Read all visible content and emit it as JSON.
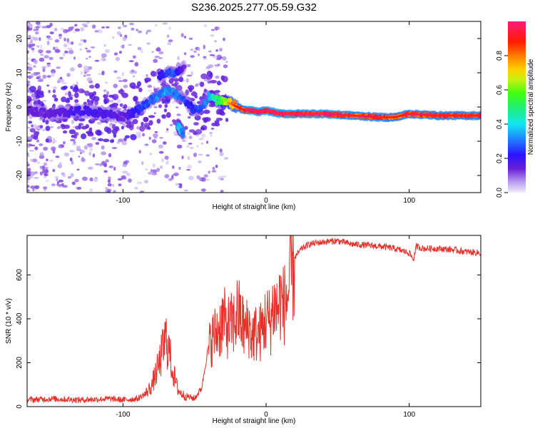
{
  "title": "S236.2025.277.05.59.G32",
  "chart_data": [
    {
      "type": "heatmap",
      "name": "spectrogram",
      "xlabel": "Height of straight line (km)",
      "ylabel": "Frequency (Hz)",
      "xlim": [
        -167,
        150
      ],
      "ylim": [
        -25,
        25
      ],
      "xticks": [
        -100,
        0,
        100
      ],
      "yticks": [
        -20,
        -10,
        0,
        10,
        20
      ],
      "colorbar": {
        "label": "Normalized spectral amplitude",
        "range": [
          0,
          1
        ],
        "ticks": [
          0.0,
          0.2,
          0.4,
          0.6,
          0.8
        ],
        "tick_labels": [
          "0.0",
          "0.2",
          "0.4",
          "0.6",
          "0.8"
        ]
      },
      "ridge": {
        "x": [
          -167,
          -150,
          -130,
          -110,
          -100,
          -90,
          -80,
          -70,
          -60,
          -55,
          -50,
          -45,
          -40,
          -35,
          -30,
          -25,
          -20,
          -15,
          -10,
          -5,
          0,
          10,
          20,
          40,
          60,
          80,
          90,
          100,
          120,
          150
        ],
        "y": [
          -1,
          -2,
          -1,
          -2,
          -3,
          -1,
          2,
          5,
          3,
          1,
          -1,
          0,
          3,
          2,
          1.5,
          1,
          0,
          -1,
          -1,
          -1.5,
          -1,
          -2,
          -2,
          -2,
          -2.5,
          -3,
          -3,
          -2,
          -2.5,
          -2.5
        ],
        "amp": [
          0.15,
          0.15,
          0.2,
          0.18,
          0.15,
          0.25,
          0.3,
          0.35,
          0.3,
          0.25,
          0.25,
          0.3,
          0.35,
          0.5,
          0.6,
          0.75,
          0.85,
          0.9,
          0.95,
          0.95,
          0.95,
          0.95,
          0.95,
          0.95,
          0.9,
          0.9,
          0.85,
          0.9,
          0.9,
          0.9
        ]
      },
      "secondary_ridge": {
        "x": [
          -75,
          -70,
          -65,
          -60,
          -57
        ],
        "y": [
          9,
          10,
          10,
          11,
          12
        ],
        "amp": [
          0.2,
          0.25,
          0.3,
          0.2,
          0.15
        ]
      },
      "side_branch": {
        "x": [
          -62,
          -60,
          -58
        ],
        "y": [
          -5,
          -6.5,
          -7.5
        ],
        "amp": [
          0.35,
          0.4,
          0.3
        ]
      }
    },
    {
      "type": "line",
      "name": "snr",
      "xlabel": "Height of straight line (km)",
      "ylabel": "SNR (10 * v/v)",
      "xlim": [
        -167,
        150
      ],
      "ylim": [
        0,
        780
      ],
      "xticks": [
        -100,
        0,
        100
      ],
      "yticks": [
        0,
        200,
        400,
        600
      ],
      "color": "#e8302a",
      "series": [
        {
          "name": "SNR",
          "x": [
            -167,
            -150,
            -130,
            -110,
            -100,
            -90,
            -85,
            -80,
            -75,
            -70,
            -68,
            -65,
            -62,
            -60,
            -55,
            -50,
            -45,
            -42,
            -40,
            -38,
            -35,
            -32,
            -30,
            -28,
            -25,
            -22,
            -20,
            -18,
            -15,
            -12,
            -10,
            -8,
            -5,
            -2,
            0,
            3,
            5,
            8,
            10,
            12,
            15,
            18,
            20,
            25,
            30,
            40,
            50,
            60,
            70,
            80,
            90,
            100,
            103,
            105,
            110,
            120,
            130,
            140,
            150
          ],
          "y": [
            25,
            30,
            25,
            30,
            25,
            30,
            50,
            90,
            180,
            300,
            250,
            150,
            80,
            60,
            40,
            30,
            80,
            200,
            280,
            320,
            350,
            380,
            420,
            380,
            380,
            400,
            450,
            420,
            360,
            380,
            330,
            350,
            340,
            380,
            420,
            400,
            480,
            460,
            510,
            480,
            520,
            640,
            680,
            720,
            740,
            750,
            755,
            740,
            735,
            730,
            720,
            700,
            670,
            730,
            720,
            720,
            715,
            705,
            700
          ]
        }
      ]
    }
  ]
}
